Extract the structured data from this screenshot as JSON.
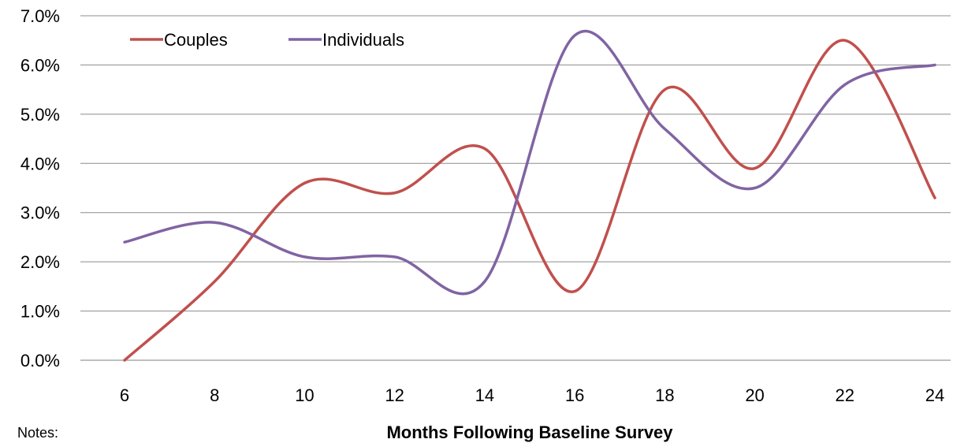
{
  "chart_data": {
    "type": "line",
    "title": "",
    "xlabel": "Months Following Baseline Survey",
    "ylabel": "",
    "categories": [
      "6",
      "8",
      "10",
      "12",
      "14",
      "16",
      "18",
      "20",
      "22",
      "24"
    ],
    "x": [
      6,
      8,
      10,
      12,
      14,
      16,
      18,
      20,
      22,
      24
    ],
    "ylim": [
      0,
      0.07
    ],
    "yticks": [
      "0.0%",
      "1.0%",
      "2.0%",
      "3.0%",
      "4.0%",
      "5.0%",
      "6.0%",
      "7.0%"
    ],
    "grid": true,
    "legend_position": "top-left",
    "smooth": true,
    "series": [
      {
        "name": "Couples",
        "color": "#c0504d",
        "values": [
          0.0,
          0.016,
          0.036,
          0.034,
          0.043,
          0.014,
          0.055,
          0.039,
          0.065,
          0.033
        ]
      },
      {
        "name": "Individuals",
        "color": "#8064a2",
        "values": [
          0.024,
          0.028,
          0.021,
          0.021,
          0.016,
          0.066,
          0.047,
          0.035,
          0.056,
          0.06
        ]
      }
    ]
  },
  "notes_label": "Notes:"
}
